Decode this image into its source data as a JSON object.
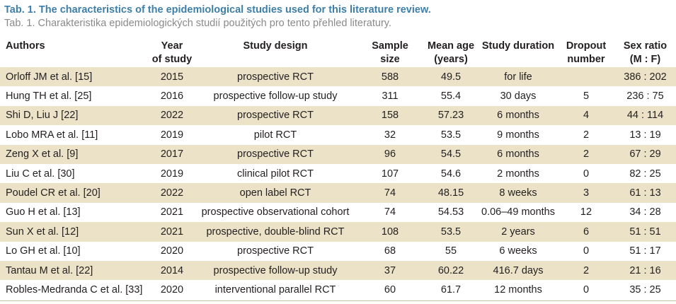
{
  "caption": {
    "english": "Tab. 1. The characteristics of the epidemiological studies used for this literature review.",
    "czech": "Tab. 1. Charakteristika epidemiologických studií použitých pro tento přehled literatury."
  },
  "headers": {
    "authors": "Authors",
    "year_line1": "Year",
    "year_line2": "of study",
    "design": "Study design",
    "sample_line1": "Sample",
    "sample_line2": "size",
    "age_line1": "Mean age",
    "age_line2": "(years)",
    "duration": "Study duration",
    "dropout_line1": "Dropout",
    "dropout_line2": "number",
    "sex_line1": "Sex ratio",
    "sex_line2": "(M : F)"
  },
  "rows": [
    {
      "author": "Orloff JM et al. [15]",
      "year": "2015",
      "design": "prospective RCT",
      "sample": "588",
      "age": "49.5",
      "duration": "for life",
      "dropout": "",
      "sex": "386 : 202"
    },
    {
      "author": "Hung TH et al. [25]",
      "year": "2016",
      "design": "prospective follow-up study",
      "sample": "311",
      "age": "55.4",
      "duration": "30 days",
      "dropout": "5",
      "sex": "236 : 75"
    },
    {
      "author": "Shi D, Liu J [22]",
      "year": "2022",
      "design": "prospective RCT",
      "sample": "158",
      "age": "57.23",
      "duration": "6 months",
      "dropout": "4",
      "sex": "44 : 114"
    },
    {
      "author": "Lobo MRA et al. [11]",
      "year": "2019",
      "design": "pilot RCT",
      "sample": "32",
      "age": "53.5",
      "duration": "9 months",
      "dropout": "2",
      "sex": "13 : 19"
    },
    {
      "author": "Zeng X et al. [9]",
      "year": "2017",
      "design": "prospective RCT",
      "sample": "96",
      "age": "54.5",
      "duration": "6 months",
      "dropout": "2",
      "sex": "67 : 29"
    },
    {
      "author": "Liu C et al. [30]",
      "year": "2019",
      "design": "clinical pilot RCT",
      "sample": "107",
      "age": "54.6",
      "duration": "2 months",
      "dropout": "0",
      "sex": "82 : 25"
    },
    {
      "author": "Poudel CR et al. [20]",
      "year": "2022",
      "design": "open label RCT",
      "sample": "74",
      "age": "48.15",
      "duration": "8 weeks",
      "dropout": "3",
      "sex": "61 : 13"
    },
    {
      "author": "Guo H et al. [13]",
      "year": "2021",
      "design": "prospective observational cohort",
      "sample": "74",
      "age": "54.53",
      "duration": "0.06–49 months",
      "dropout": "12",
      "sex": "34 : 28"
    },
    {
      "author": "Sun X et al. [12]",
      "year": "2021",
      "design": "prospective, double-blind RCT",
      "sample": "108",
      "age": "53.5",
      "duration": "2 years",
      "dropout": "6",
      "sex": "51 : 51"
    },
    {
      "author": "Lo GH et al. [10]",
      "year": "2020",
      "design": "prospective RCT",
      "sample": "68",
      "age": "55",
      "duration": "6 weeks",
      "dropout": "0",
      "sex": "51 : 17"
    },
    {
      "author": "Tantau M et al. [22]",
      "year": "2014",
      "design": "prospective follow-up study",
      "sample": "37",
      "age": "60.22",
      "duration": "416.7 days",
      "dropout": "2",
      "sex": "21 : 16"
    },
    {
      "author": "Robles-Medranda C et al. [33]",
      "year": "2020",
      "design": "interventional parallel RCT",
      "sample": "60",
      "age": "61.7",
      "duration": "12 months",
      "dropout": "0",
      "sex": "35 : 25"
    }
  ],
  "colors": {
    "caption_blue": "#3d7fa8",
    "caption_grey": "#8a8a8a",
    "row_shade": "#ebe2c7"
  }
}
